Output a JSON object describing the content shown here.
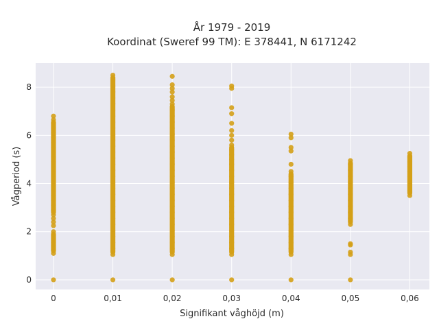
{
  "chart_data": {
    "type": "scatter",
    "title_line1": "År 1979 - 2019",
    "title_line2": "Koordinat (Sweref 99 TM): E 378441, N 6171242",
    "xlabel": "Signifikant våghöjd (m)",
    "ylabel": "Vågperiod (s)",
    "xlim": [
      -0.003,
      0.0633
    ],
    "ylim": [
      -0.4,
      9.0
    ],
    "x_ticks": [
      {
        "value": 0,
        "label": "0"
      },
      {
        "value": 0.01,
        "label": "0,01"
      },
      {
        "value": 0.02,
        "label": "0,02"
      },
      {
        "value": 0.03,
        "label": "0,03"
      },
      {
        "value": 0.04,
        "label": "0,04"
      },
      {
        "value": 0.05,
        "label": "0,05"
      },
      {
        "value": 0.06,
        "label": "0,06"
      }
    ],
    "y_ticks": [
      {
        "value": 0,
        "label": "0"
      },
      {
        "value": 2,
        "label": "2"
      },
      {
        "value": 4,
        "label": "4"
      },
      {
        "value": 6,
        "label": "6"
      },
      {
        "value": 8,
        "label": "8"
      }
    ],
    "grid": true,
    "colors": {
      "marker": "#d4a017",
      "plot_bg": "#e9e9f1",
      "grid": "#ffffff"
    },
    "series": [
      {
        "points": [
          [
            0,
            0.0
          ],
          [
            0,
            1.1
          ],
          [
            0,
            1.25
          ],
          [
            0,
            1.4
          ],
          [
            0,
            1.55
          ],
          [
            0,
            1.7
          ],
          [
            0,
            1.85
          ],
          [
            0,
            2.0
          ],
          [
            0,
            2.25
          ],
          [
            0,
            2.4
          ],
          [
            0,
            2.55
          ],
          [
            0,
            2.7
          ],
          [
            0,
            2.9
          ],
          [
            0,
            3.1
          ],
          [
            0,
            3.3
          ],
          [
            0,
            3.5
          ],
          [
            0,
            3.7
          ],
          [
            0,
            3.9
          ],
          [
            0,
            4.1
          ],
          [
            0,
            4.3
          ],
          [
            0,
            4.5
          ],
          [
            0,
            4.7
          ],
          [
            0,
            4.9
          ],
          [
            0,
            5.1
          ],
          [
            0,
            5.3
          ],
          [
            0,
            5.5
          ],
          [
            0,
            5.7
          ],
          [
            0,
            5.9
          ],
          [
            0,
            6.1
          ],
          [
            0,
            6.3
          ],
          [
            0,
            6.5
          ],
          [
            0,
            6.65
          ],
          [
            0,
            6.8
          ],
          [
            0.01,
            0.0
          ],
          [
            0.01,
            1.05
          ],
          [
            0.01,
            1.3
          ],
          [
            0.01,
            1.55
          ],
          [
            0.01,
            1.8
          ],
          [
            0.01,
            2.05
          ],
          [
            0.01,
            2.3
          ],
          [
            0.01,
            2.55
          ],
          [
            0.01,
            2.8
          ],
          [
            0.01,
            3.05
          ],
          [
            0.01,
            3.3
          ],
          [
            0.01,
            3.55
          ],
          [
            0.01,
            3.8
          ],
          [
            0.01,
            4.05
          ],
          [
            0.01,
            4.3
          ],
          [
            0.01,
            4.55
          ],
          [
            0.01,
            4.8
          ],
          [
            0.01,
            5.05
          ],
          [
            0.01,
            5.3
          ],
          [
            0.01,
            5.55
          ],
          [
            0.01,
            5.8
          ],
          [
            0.01,
            6.05
          ],
          [
            0.01,
            6.3
          ],
          [
            0.01,
            6.55
          ],
          [
            0.01,
            6.8
          ],
          [
            0.01,
            7.05
          ],
          [
            0.01,
            7.3
          ],
          [
            0.01,
            7.55
          ],
          [
            0.01,
            7.8
          ],
          [
            0.01,
            8.05
          ],
          [
            0.01,
            8.3
          ],
          [
            0.01,
            8.5
          ],
          [
            0.02,
            0.0
          ],
          [
            0.02,
            1.05
          ],
          [
            0.02,
            1.3
          ],
          [
            0.02,
            1.55
          ],
          [
            0.02,
            1.8
          ],
          [
            0.02,
            2.05
          ],
          [
            0.02,
            2.3
          ],
          [
            0.02,
            2.55
          ],
          [
            0.02,
            2.8
          ],
          [
            0.02,
            3.05
          ],
          [
            0.02,
            3.3
          ],
          [
            0.02,
            3.55
          ],
          [
            0.02,
            3.8
          ],
          [
            0.02,
            4.05
          ],
          [
            0.02,
            4.3
          ],
          [
            0.02,
            4.55
          ],
          [
            0.02,
            4.8
          ],
          [
            0.02,
            5.05
          ],
          [
            0.02,
            5.3
          ],
          [
            0.02,
            5.55
          ],
          [
            0.02,
            5.8
          ],
          [
            0.02,
            6.05
          ],
          [
            0.02,
            6.3
          ],
          [
            0.02,
            6.55
          ],
          [
            0.02,
            6.8
          ],
          [
            0.02,
            7.05
          ],
          [
            0.02,
            7.3
          ],
          [
            0.02,
            7.45
          ],
          [
            0.02,
            7.6
          ],
          [
            0.02,
            7.8
          ],
          [
            0.02,
            7.95
          ],
          [
            0.02,
            8.1
          ],
          [
            0.02,
            8.45
          ],
          [
            0.03,
            0.0
          ],
          [
            0.03,
            1.05
          ],
          [
            0.03,
            1.3
          ],
          [
            0.03,
            1.55
          ],
          [
            0.03,
            1.8
          ],
          [
            0.03,
            2.05
          ],
          [
            0.03,
            2.3
          ],
          [
            0.03,
            2.55
          ],
          [
            0.03,
            2.8
          ],
          [
            0.03,
            3.05
          ],
          [
            0.03,
            3.3
          ],
          [
            0.03,
            3.55
          ],
          [
            0.03,
            3.8
          ],
          [
            0.03,
            4.05
          ],
          [
            0.03,
            4.3
          ],
          [
            0.03,
            4.55
          ],
          [
            0.03,
            4.8
          ],
          [
            0.03,
            5.0
          ],
          [
            0.03,
            5.2
          ],
          [
            0.03,
            5.4
          ],
          [
            0.03,
            5.6
          ],
          [
            0.03,
            5.8
          ],
          [
            0.03,
            6.0
          ],
          [
            0.03,
            6.2
          ],
          [
            0.03,
            6.5
          ],
          [
            0.03,
            6.9
          ],
          [
            0.03,
            7.15
          ],
          [
            0.03,
            7.95
          ],
          [
            0.03,
            8.05
          ],
          [
            0.04,
            0.0
          ],
          [
            0.04,
            1.05
          ],
          [
            0.04,
            1.3
          ],
          [
            0.04,
            1.55
          ],
          [
            0.04,
            1.8
          ],
          [
            0.04,
            2.05
          ],
          [
            0.04,
            2.3
          ],
          [
            0.04,
            2.55
          ],
          [
            0.04,
            2.8
          ],
          [
            0.04,
            3.05
          ],
          [
            0.04,
            3.3
          ],
          [
            0.04,
            3.55
          ],
          [
            0.04,
            3.8
          ],
          [
            0.04,
            4.05
          ],
          [
            0.04,
            4.3
          ],
          [
            0.04,
            4.5
          ],
          [
            0.04,
            4.8
          ],
          [
            0.04,
            5.35
          ],
          [
            0.04,
            5.5
          ],
          [
            0.04,
            5.9
          ],
          [
            0.04,
            6.05
          ],
          [
            0.05,
            0.0
          ],
          [
            0.05,
            1.05
          ],
          [
            0.05,
            1.15
          ],
          [
            0.05,
            1.45
          ],
          [
            0.05,
            1.5
          ],
          [
            0.05,
            2.3
          ],
          [
            0.05,
            2.55
          ],
          [
            0.05,
            2.8
          ],
          [
            0.05,
            3.05
          ],
          [
            0.05,
            3.3
          ],
          [
            0.05,
            3.55
          ],
          [
            0.05,
            3.8
          ],
          [
            0.05,
            4.05
          ],
          [
            0.05,
            4.3
          ],
          [
            0.05,
            4.55
          ],
          [
            0.05,
            4.8
          ],
          [
            0.05,
            4.95
          ],
          [
            0.06,
            3.5
          ],
          [
            0.06,
            3.7
          ],
          [
            0.06,
            3.9
          ],
          [
            0.06,
            4.1
          ],
          [
            0.06,
            4.3
          ],
          [
            0.06,
            4.5
          ],
          [
            0.06,
            4.7
          ],
          [
            0.06,
            4.9
          ],
          [
            0.06,
            5.1
          ],
          [
            0.06,
            5.25
          ]
        ]
      }
    ]
  }
}
